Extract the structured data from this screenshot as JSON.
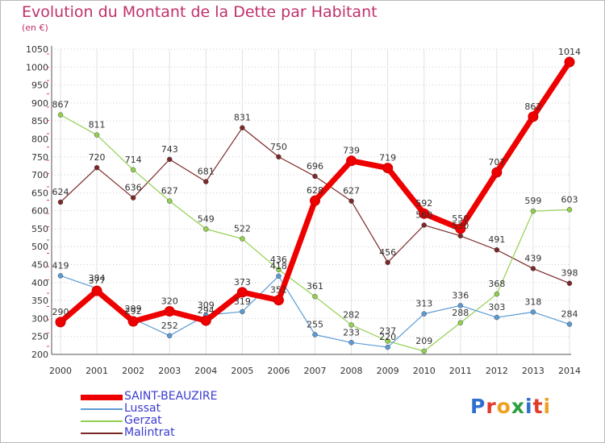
{
  "header": {
    "title": "Evolution du Montant de la Dette par Habitant",
    "subtitle": "(en €)"
  },
  "logo": {
    "text": "Proxiti"
  },
  "chart_data": {
    "type": "line",
    "title": "Evolution du Montant de la Dette par Habitant",
    "subtitle": "(en €)",
    "x": [
      2000,
      2001,
      2002,
      2003,
      2004,
      2005,
      2006,
      2007,
      2008,
      2009,
      2010,
      2011,
      2012,
      2013,
      2014
    ],
    "ylim": [
      200,
      1050
    ],
    "yticks": [
      200,
      250,
      300,
      350,
      400,
      450,
      500,
      550,
      600,
      650,
      700,
      750,
      800,
      850,
      900,
      950,
      1000,
      1050
    ],
    "grid": "horizontal-dotted",
    "legend": "bottom-left",
    "series": [
      {
        "name": "SAINT-BEAUZIRE",
        "color": "#ee0000",
        "values": [
          290,
          377,
          292,
          320,
          294,
          373,
          351,
          628,
          739,
          719,
          592,
          550,
          707,
          862,
          1014
        ]
      },
      {
        "name": "Lussat",
        "color": "#5b9bd5",
        "values": [
          419,
          384,
          299,
          252,
          309,
          319,
          418,
          255,
          233,
          220,
          313,
          336,
          303,
          318,
          284
        ]
      },
      {
        "name": "Gerzat",
        "color": "#92d050",
        "values": [
          867,
          811,
          714,
          627,
          549,
          522,
          436,
          361,
          282,
          237,
          209,
          288,
          368,
          599,
          603
        ]
      },
      {
        "name": "Malintrat",
        "color": "#7b2828",
        "values": [
          624,
          720,
          636,
          743,
          681,
          831,
          750,
          696,
          627,
          456,
          560,
          530,
          491,
          439,
          398
        ]
      }
    ]
  }
}
